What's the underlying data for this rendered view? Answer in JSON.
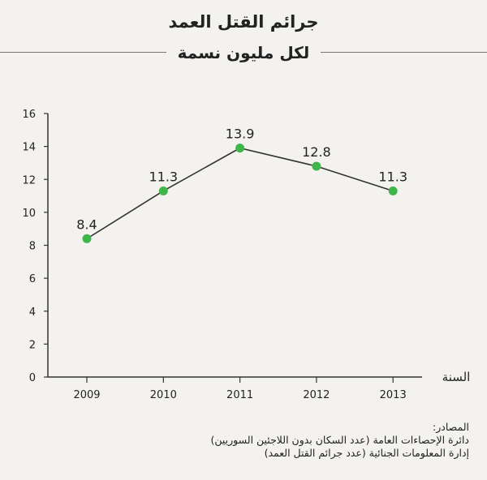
{
  "header": {
    "title": "جرائم القتل العمد",
    "subtitle": "لكل مليون نسمة"
  },
  "chart_data": {
    "type": "line",
    "title": "جرائم القتل العمد",
    "subtitle": "لكل مليون نسمة",
    "xlabel": "السنة",
    "ylabel": "",
    "categories": [
      "2009",
      "2010",
      "2011",
      "2012",
      "2013"
    ],
    "series": [
      {
        "values": [
          8.4,
          11.3,
          13.9,
          12.8,
          11.3
        ]
      }
    ],
    "data_labels": [
      "8.4",
      "11.3",
      "13.9",
      "12.8",
      "11.3"
    ],
    "ylim": [
      0,
      16
    ],
    "yticks": [
      0,
      2,
      4,
      6,
      8,
      10,
      12,
      14,
      16
    ],
    "grid": false,
    "legend": "none",
    "colors": {
      "line": "#333333",
      "marker": "#3fb54a",
      "axis": "#333333"
    }
  },
  "sources": {
    "heading": "المصادر:",
    "lines": [
      "دائرة الإحصاءات العامة (عدد السكان بدون اللاجئين السوريين)",
      "إدارة المعلومات الجنائية (عدد جرائم القتل العمد)"
    ]
  }
}
